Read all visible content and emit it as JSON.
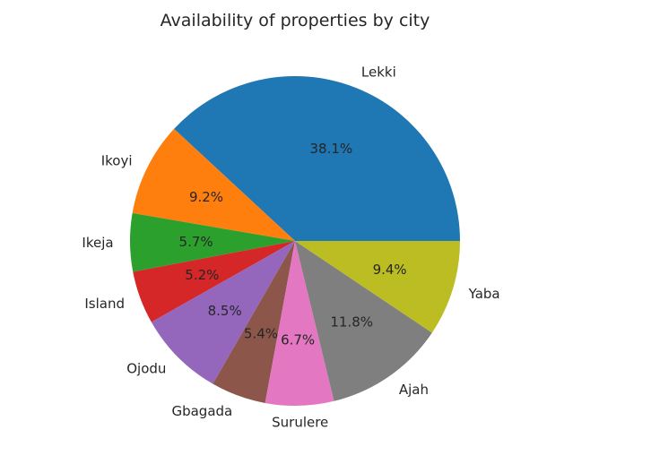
{
  "chart_data": {
    "type": "pie",
    "title": "Availability of properties by city",
    "categories": [
      "Lekki",
      "Ikoyi",
      "Ikeja",
      "Island",
      "Ojodu",
      "Gbagada",
      "Surulere",
      "Ajah",
      "Yaba"
    ],
    "values": [
      38.1,
      9.2,
      5.7,
      5.2,
      8.5,
      5.4,
      6.7,
      11.8,
      9.4
    ],
    "value_labels": [
      "38.1%",
      "9.2%",
      "5.7%",
      "5.2%",
      "8.5%",
      "5.4%",
      "6.7%",
      "11.8%",
      "9.4%"
    ],
    "colors": [
      "#1f77b4",
      "#ff7f0e",
      "#2ca02c",
      "#d62728",
      "#9467bd",
      "#8c564b",
      "#e377c2",
      "#7f7f7f",
      "#bcbd22"
    ],
    "start_angle": 0,
    "direction": "counterclockwise",
    "legend": "none"
  }
}
